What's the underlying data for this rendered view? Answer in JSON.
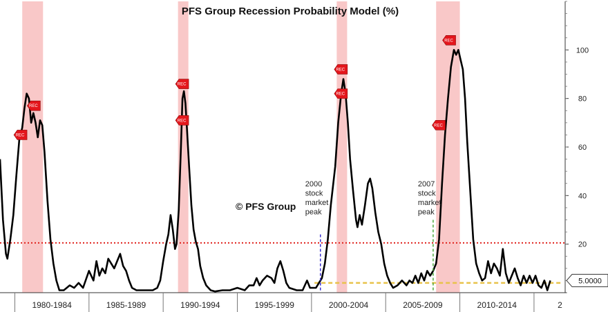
{
  "chart_data": {
    "type": "line",
    "title": "PFS Group Recession Probability Model (%)",
    "watermark": "© PFS Group",
    "y_axis": {
      "side": "right",
      "ylim": [
        0,
        120
      ],
      "ticks": [
        20,
        40,
        60,
        80,
        100
      ]
    },
    "x_axis": {
      "xlim": [
        1978.5,
        2016.6
      ],
      "tick_labels": [
        {
          "label": "1980-1984",
          "center": 1982.0
        },
        {
          "label": "1985-1989",
          "center": 1987.0
        },
        {
          "label": "1990-1994",
          "center": 1992.0
        },
        {
          "label": "1995-1999",
          "center": 1997.0
        },
        {
          "label": "2000-2004",
          "center": 2002.0
        },
        {
          "label": "2005-2009",
          "center": 2007.0
        },
        {
          "label": "2010-2014",
          "center": 2012.0
        },
        {
          "label": "2",
          "center": 2016.25
        }
      ],
      "separators": [
        1979.5,
        1984.5,
        1989.5,
        1994.5,
        1999.5,
        2004.5,
        2009.5,
        2014.5
      ]
    },
    "recessions": [
      {
        "start": 1980.0,
        "end": 1981.4
      },
      {
        "start": 1990.5,
        "end": 1991.2
      },
      {
        "start": 2001.2,
        "end": 2001.9
      },
      {
        "start": 2007.9,
        "end": 2009.5
      }
    ],
    "rec_markers": [
      {
        "label": "REC",
        "x": 1979.9,
        "y": 65
      },
      {
        "label": "REC",
        "x": 1980.8,
        "y": 77
      },
      {
        "label": "REC",
        "x": 1990.8,
        "y": 86
      },
      {
        "label": "REC",
        "x": 1990.8,
        "y": 71
      },
      {
        "label": "REC",
        "x": 2001.5,
        "y": 92
      },
      {
        "label": "REC",
        "x": 2001.5,
        "y": 82
      },
      {
        "label": "REC",
        "x": 2008.1,
        "y": 69
      },
      {
        "label": "REC",
        "x": 2008.8,
        "y": 104
      }
    ],
    "threshold": {
      "value": 20.5,
      "color": "#e0201b",
      "style": "dotted"
    },
    "baseline": {
      "value": 4,
      "start": 1999.7,
      "end": 2016.4,
      "color": "#e8c24a",
      "style": "dashed"
    },
    "annotations": [
      {
        "lines": [
          "2000",
          "stock",
          "market",
          "peak"
        ],
        "x": 2000.1,
        "line_top": 24,
        "color": "#3a2fd0"
      },
      {
        "lines": [
          "2007",
          "stock",
          "market",
          "peak"
        ],
        "x": 2007.7,
        "line_top": 30,
        "color": "#4aa83a"
      }
    ],
    "last_value": {
      "label": "5.0000",
      "value": 5.0
    },
    "series": [
      {
        "name": "Recession Probability",
        "color": "#000000",
        "points": [
          [
            1978.5,
            55
          ],
          [
            1978.7,
            30
          ],
          [
            1978.9,
            16
          ],
          [
            1979.0,
            14
          ],
          [
            1979.2,
            22
          ],
          [
            1979.4,
            32
          ],
          [
            1979.6,
            48
          ],
          [
            1979.8,
            63
          ],
          [
            1980.0,
            68
          ],
          [
            1980.15,
            76
          ],
          [
            1980.3,
            82
          ],
          [
            1980.45,
            80
          ],
          [
            1980.6,
            70
          ],
          [
            1980.75,
            74
          ],
          [
            1980.9,
            70
          ],
          [
            1981.05,
            64
          ],
          [
            1981.2,
            71
          ],
          [
            1981.35,
            69
          ],
          [
            1981.5,
            58
          ],
          [
            1981.7,
            38
          ],
          [
            1981.9,
            22
          ],
          [
            1982.1,
            12
          ],
          [
            1982.3,
            5
          ],
          [
            1982.5,
            1
          ],
          [
            1982.8,
            1
          ],
          [
            1983.0,
            2
          ],
          [
            1983.2,
            3
          ],
          [
            1983.5,
            2
          ],
          [
            1983.8,
            4
          ],
          [
            1984.1,
            2
          ],
          [
            1984.5,
            9
          ],
          [
            1984.8,
            5
          ],
          [
            1985.0,
            13
          ],
          [
            1985.2,
            7
          ],
          [
            1985.4,
            10
          ],
          [
            1985.6,
            8
          ],
          [
            1985.8,
            14
          ],
          [
            1986.0,
            12
          ],
          [
            1986.2,
            10
          ],
          [
            1986.4,
            13
          ],
          [
            1986.6,
            16
          ],
          [
            1986.8,
            11
          ],
          [
            1987.0,
            9
          ],
          [
            1987.2,
            5
          ],
          [
            1987.4,
            2
          ],
          [
            1987.7,
            1
          ],
          [
            1988.0,
            1
          ],
          [
            1988.4,
            1
          ],
          [
            1988.8,
            1
          ],
          [
            1989.1,
            2
          ],
          [
            1989.3,
            5
          ],
          [
            1989.5,
            13
          ],
          [
            1989.7,
            20
          ],
          [
            1989.85,
            24
          ],
          [
            1990.0,
            32
          ],
          [
            1990.15,
            26
          ],
          [
            1990.3,
            18
          ],
          [
            1990.4,
            20
          ],
          [
            1990.55,
            34
          ],
          [
            1990.7,
            60
          ],
          [
            1990.8,
            80
          ],
          [
            1990.9,
            83
          ],
          [
            1991.0,
            78
          ],
          [
            1991.1,
            68
          ],
          [
            1991.25,
            52
          ],
          [
            1991.4,
            36
          ],
          [
            1991.55,
            26
          ],
          [
            1991.7,
            21
          ],
          [
            1991.85,
            18
          ],
          [
            1992.0,
            11
          ],
          [
            1992.2,
            6
          ],
          [
            1992.4,
            3
          ],
          [
            1992.7,
            1
          ],
          [
            1993.0,
            0.5
          ],
          [
            1993.5,
            1
          ],
          [
            1994.0,
            1
          ],
          [
            1994.5,
            2
          ],
          [
            1995.0,
            1
          ],
          [
            1995.3,
            3
          ],
          [
            1995.6,
            3
          ],
          [
            1995.8,
            6
          ],
          [
            1996.0,
            3
          ],
          [
            1996.2,
            5
          ],
          [
            1996.5,
            7
          ],
          [
            1996.8,
            6
          ],
          [
            1997.0,
            4
          ],
          [
            1997.2,
            10
          ],
          [
            1997.4,
            13
          ],
          [
            1997.6,
            9
          ],
          [
            1997.8,
            4
          ],
          [
            1998.0,
            2
          ],
          [
            1998.5,
            1
          ],
          [
            1998.9,
            1
          ],
          [
            1999.2,
            5
          ],
          [
            1999.4,
            2
          ],
          [
            1999.8,
            2
          ],
          [
            2000.0,
            4
          ],
          [
            2000.2,
            6
          ],
          [
            2000.4,
            12
          ],
          [
            2000.6,
            22
          ],
          [
            2000.8,
            36
          ],
          [
            2000.95,
            44
          ],
          [
            2001.1,
            52
          ],
          [
            2001.3,
            70
          ],
          [
            2001.5,
            82
          ],
          [
            2001.65,
            88
          ],
          [
            2001.8,
            82
          ],
          [
            2001.95,
            70
          ],
          [
            2002.1,
            55
          ],
          [
            2002.3,
            42
          ],
          [
            2002.5,
            30
          ],
          [
            2002.6,
            27
          ],
          [
            2002.75,
            32
          ],
          [
            2002.9,
            28
          ],
          [
            2003.1,
            36
          ],
          [
            2003.3,
            45
          ],
          [
            2003.45,
            47
          ],
          [
            2003.6,
            43
          ],
          [
            2003.8,
            33
          ],
          [
            2004.0,
            25
          ],
          [
            2004.2,
            20
          ],
          [
            2004.4,
            12
          ],
          [
            2004.6,
            7
          ],
          [
            2004.8,
            4
          ],
          [
            2005.0,
            2
          ],
          [
            2005.3,
            3
          ],
          [
            2005.6,
            5
          ],
          [
            2005.9,
            3
          ],
          [
            2006.1,
            5
          ],
          [
            2006.3,
            4
          ],
          [
            2006.5,
            7
          ],
          [
            2006.7,
            4
          ],
          [
            2006.9,
            8
          ],
          [
            2007.1,
            5
          ],
          [
            2007.3,
            9
          ],
          [
            2007.5,
            7
          ],
          [
            2007.7,
            9
          ],
          [
            2007.9,
            12
          ],
          [
            2008.1,
            22
          ],
          [
            2008.3,
            45
          ],
          [
            2008.5,
            65
          ],
          [
            2008.7,
            80
          ],
          [
            2008.9,
            93
          ],
          [
            2009.1,
            100
          ],
          [
            2009.25,
            98
          ],
          [
            2009.4,
            100
          ],
          [
            2009.55,
            96
          ],
          [
            2009.7,
            92
          ],
          [
            2009.85,
            80
          ],
          [
            2010.0,
            62
          ],
          [
            2010.2,
            42
          ],
          [
            2010.4,
            22
          ],
          [
            2010.6,
            12
          ],
          [
            2010.8,
            8
          ],
          [
            2011.0,
            5
          ],
          [
            2011.2,
            6
          ],
          [
            2011.4,
            13
          ],
          [
            2011.6,
            8
          ],
          [
            2011.8,
            12
          ],
          [
            2012.0,
            10
          ],
          [
            2012.2,
            7
          ],
          [
            2012.4,
            18
          ],
          [
            2012.6,
            8
          ],
          [
            2012.8,
            4
          ],
          [
            2013.0,
            7
          ],
          [
            2013.2,
            10
          ],
          [
            2013.4,
            6
          ],
          [
            2013.6,
            3
          ],
          [
            2013.8,
            7
          ],
          [
            2014.0,
            4
          ],
          [
            2014.2,
            7
          ],
          [
            2014.4,
            4
          ],
          [
            2014.6,
            7
          ],
          [
            2014.8,
            3
          ],
          [
            2015.0,
            2
          ],
          [
            2015.2,
            5
          ],
          [
            2015.4,
            1
          ],
          [
            2015.6,
            5
          ]
        ]
      }
    ]
  }
}
